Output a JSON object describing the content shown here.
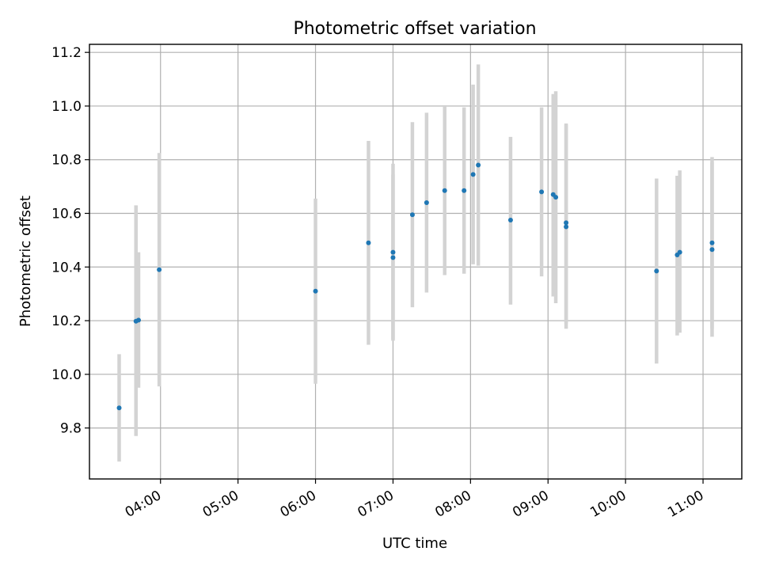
{
  "chart_data": {
    "type": "scatter",
    "title": "Photometric offset variation",
    "xlabel": "UTC time",
    "ylabel": "Photometric offset",
    "x_axis_type": "time",
    "xlim": [
      "03:05",
      "11:30"
    ],
    "ylim": [
      9.61,
      11.23
    ],
    "xticks": [
      "04:00",
      "05:00",
      "06:00",
      "07:00",
      "08:00",
      "09:00",
      "10:00",
      "11:00"
    ],
    "yticks": [
      "9.8",
      "10.0",
      "10.2",
      "10.4",
      "10.6",
      "10.8",
      "11.0",
      "11.2"
    ],
    "grid": true,
    "marker_color": "#1f77b4",
    "errorbar_color": "#d3d3d3",
    "points": [
      {
        "time": "03:28",
        "y": 9.875,
        "lo": 9.675,
        "hi": 10.075
      },
      {
        "time": "03:41",
        "y": 10.198,
        "lo": 9.77,
        "hi": 10.63
      },
      {
        "time": "03:43",
        "y": 10.202,
        "lo": 9.95,
        "hi": 10.455
      },
      {
        "time": "03:59",
        "y": 10.39,
        "lo": 9.955,
        "hi": 10.825
      },
      {
        "time": "06:00",
        "y": 10.31,
        "lo": 9.965,
        "hi": 10.655
      },
      {
        "time": "06:41",
        "y": 10.49,
        "lo": 10.11,
        "hi": 10.87
      },
      {
        "time": "07:00",
        "y": 10.455,
        "lo": 10.125,
        "hi": 10.785
      },
      {
        "time": "07:00",
        "y": 10.435,
        "lo": 10.13,
        "hi": 10.745
      },
      {
        "time": "07:15",
        "y": 10.595,
        "lo": 10.25,
        "hi": 10.94
      },
      {
        "time": "07:26",
        "y": 10.64,
        "lo": 10.305,
        "hi": 10.975
      },
      {
        "time": "07:40",
        "y": 10.685,
        "lo": 10.37,
        "hi": 11.0
      },
      {
        "time": "07:55",
        "y": 10.685,
        "lo": 10.375,
        "hi": 10.995
      },
      {
        "time": "08:02",
        "y": 10.745,
        "lo": 10.41,
        "hi": 11.08
      },
      {
        "time": "08:06",
        "y": 10.78,
        "lo": 10.405,
        "hi": 11.155
      },
      {
        "time": "08:31",
        "y": 10.575,
        "lo": 10.26,
        "hi": 10.885
      },
      {
        "time": "08:55",
        "y": 10.68,
        "lo": 10.365,
        "hi": 10.995
      },
      {
        "time": "09:04",
        "y": 10.67,
        "lo": 10.29,
        "hi": 11.045
      },
      {
        "time": "09:06",
        "y": 10.66,
        "lo": 10.265,
        "hi": 11.055
      },
      {
        "time": "09:14",
        "y": 10.565,
        "lo": 10.17,
        "hi": 10.935
      },
      {
        "time": "09:14",
        "y": 10.55,
        "lo": 10.19,
        "hi": 10.93
      },
      {
        "time": "10:24",
        "y": 10.385,
        "lo": 10.04,
        "hi": 10.73
      },
      {
        "time": "10:40",
        "y": 10.445,
        "lo": 10.145,
        "hi": 10.74
      },
      {
        "time": "10:42",
        "y": 10.455,
        "lo": 10.155,
        "hi": 10.76
      },
      {
        "time": "11:07",
        "y": 10.49,
        "lo": 10.17,
        "hi": 10.81
      },
      {
        "time": "11:07",
        "y": 10.465,
        "lo": 10.14,
        "hi": 10.79
      }
    ]
  }
}
